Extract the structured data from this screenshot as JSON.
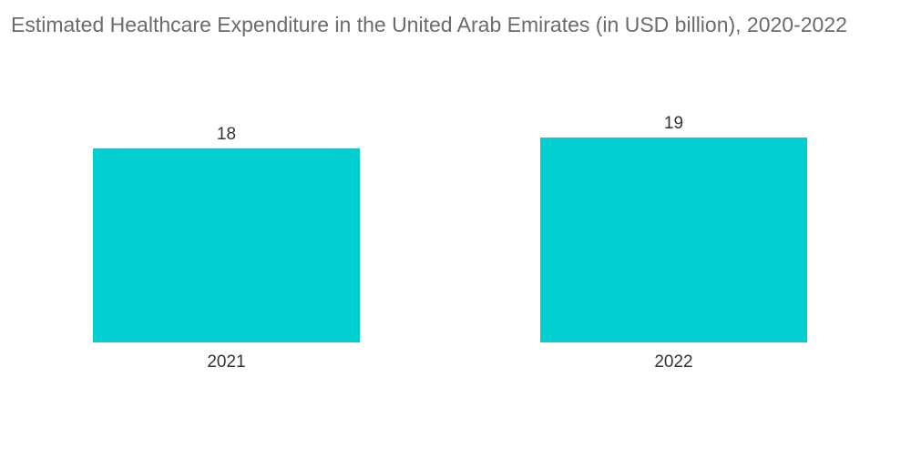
{
  "chart_data": {
    "type": "bar",
    "title": "Estimated Healthcare Expenditure in the United Arab Emirates (in USD billion), 2020-2022",
    "xlabel": "",
    "ylabel": "",
    "categories": [
      "2021",
      "2022"
    ],
    "values": [
      18,
      19
    ],
    "value_labels": [
      "18",
      "19"
    ],
    "ylim": [
      0,
      19
    ],
    "grid": false,
    "legend": "none",
    "bar_color": "#00CED1"
  }
}
